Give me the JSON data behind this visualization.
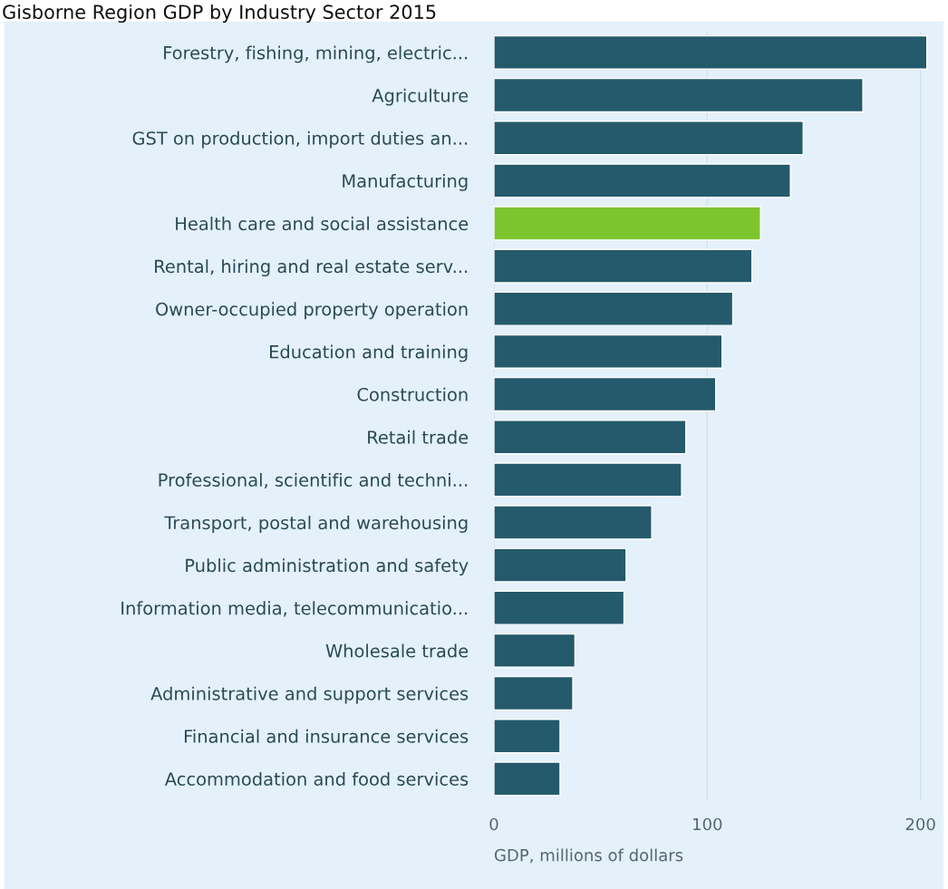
{
  "chart_data": {
    "type": "bar",
    "orientation": "horizontal",
    "title": "Gisborne Region GDP by Industry Sector 2015",
    "xlabel": "GDP, millions of dollars",
    "categories": [
      "Forestry, fishing, mining, electric...",
      "Agriculture",
      "GST on production, import duties an...",
      "Manufacturing",
      "Health care and social assistance",
      "Rental, hiring and real estate serv...",
      "Owner-occupied property operation",
      "Education and training",
      "Construction",
      "Retail trade",
      "Professional, scientific and techni...",
      "Transport, postal and warehousing",
      "Public administration and safety",
      "Information media, telecommunicatio...",
      "Wholesale trade",
      "Administrative and support services",
      "Financial and insurance services",
      "Accommodation and food services"
    ],
    "values": [
      203,
      173,
      145,
      139,
      125,
      121,
      112,
      107,
      104,
      90,
      88,
      74,
      62,
      61,
      38,
      37,
      31,
      31
    ],
    "colors": [
      "#245a6b",
      "#245a6b",
      "#245a6b",
      "#245a6b",
      "#7dc52e",
      "#245a6b",
      "#245a6b",
      "#245a6b",
      "#245a6b",
      "#245a6b",
      "#245a6b",
      "#245a6b",
      "#245a6b",
      "#245a6b",
      "#245a6b",
      "#245a6b",
      "#245a6b",
      "#245a6b"
    ],
    "xlim": [
      0,
      204
    ],
    "xticks": [
      0,
      100,
      200
    ],
    "grid": "x"
  }
}
